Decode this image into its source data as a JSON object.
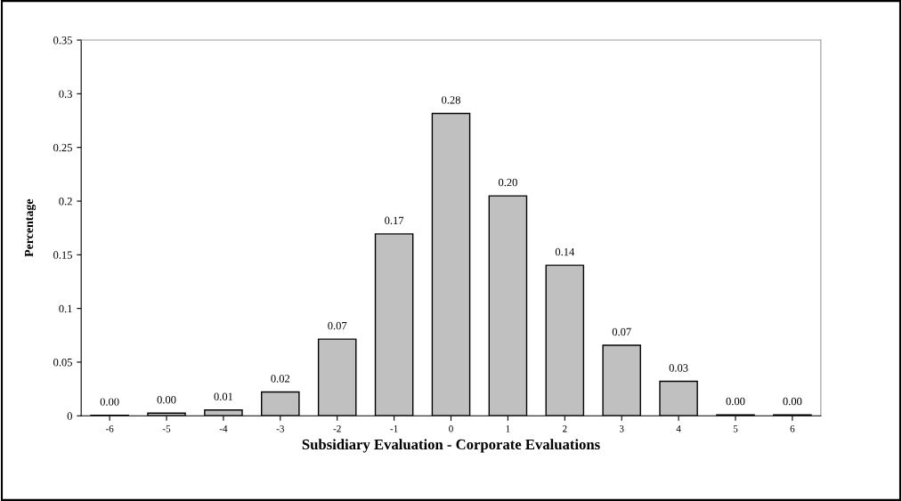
{
  "chart_data": {
    "type": "bar",
    "categories": [
      "-6",
      "-5",
      "-4",
      "-3",
      "-2",
      "-1",
      "0",
      "1",
      "2",
      "3",
      "4",
      "5",
      "6"
    ],
    "values": [
      0.0005,
      0.0025,
      0.0054,
      0.0222,
      0.0714,
      0.1694,
      0.2817,
      0.2049,
      0.1402,
      0.0657,
      0.0321,
      0.001,
      0.001
    ],
    "value_labels": [
      "0.00",
      "0.00",
      "0.01",
      "0.02",
      "0.07",
      "0.17",
      "0.28",
      "0.20",
      "0.14",
      "0.07",
      "0.03",
      "0.00",
      "0.00"
    ],
    "color": "#c0c0c0",
    "xlabel": "Subsidiary Evaluation - Corporate Evaluations",
    "ylabel": "Percentage",
    "ylim": [
      0,
      0.35
    ],
    "yticks": [
      {
        "value": 0,
        "label": "0"
      },
      0.05,
      0.1,
      0.15,
      0.2,
      0.25,
      0.3,
      0.35
    ],
    "grid": false,
    "legend": false
  }
}
